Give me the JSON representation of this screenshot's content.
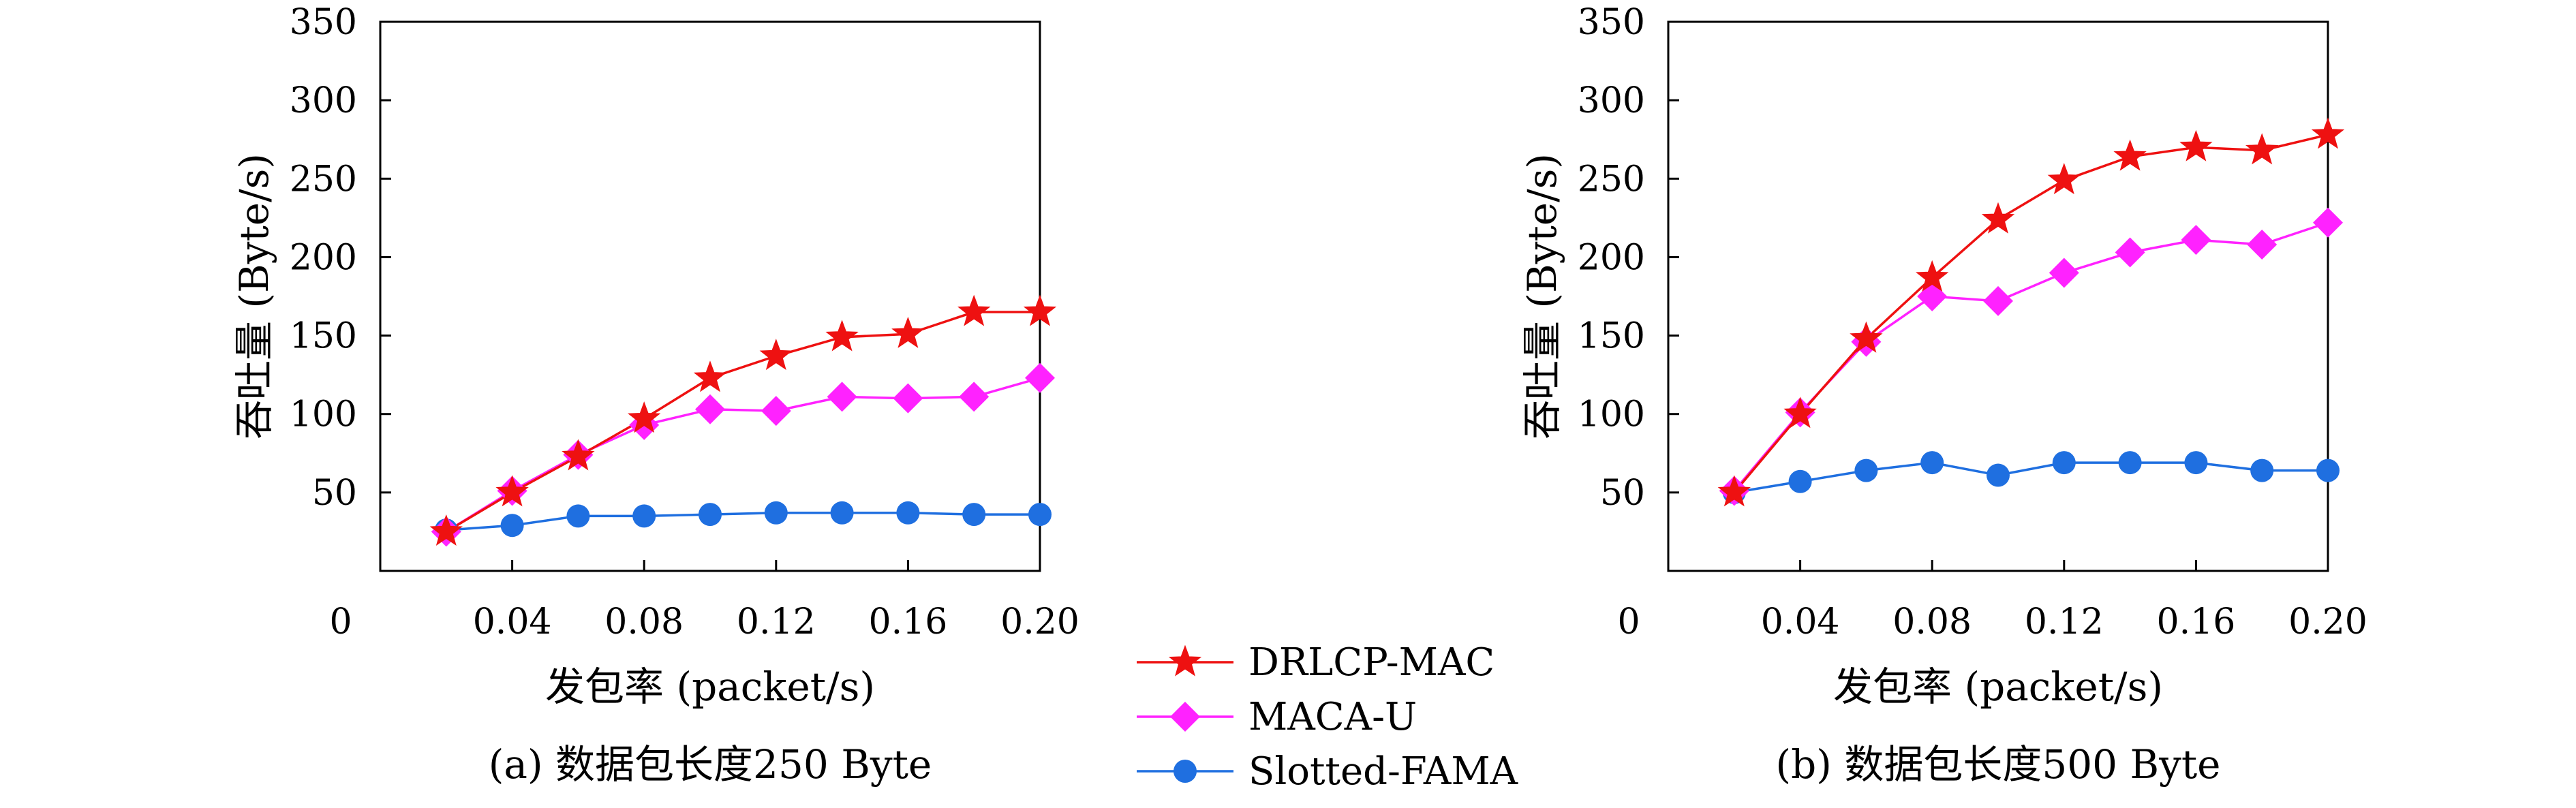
{
  "legend": [
    {
      "name": "DRLCP-MAC",
      "color": "#ee1111",
      "marker": "star"
    },
    {
      "name": "MACA-U",
      "color": "#ff22ff",
      "marker": "diamond"
    },
    {
      "name": "Slotted-FAMA",
      "color": "#1f6fe0",
      "marker": "circle"
    }
  ],
  "chart_data": [
    {
      "type": "line",
      "caption": "(a) 数据包长度250 Byte",
      "xlabel": "发包率 (packet/s)",
      "ylabel": "吞吐量 (Byte/s)",
      "xlim": [
        0,
        0.2
      ],
      "ylim": [
        0,
        350
      ],
      "x_ticks": [
        0.04,
        0.08,
        0.12,
        0.16,
        0.2
      ],
      "x_tick_labels": [
        "0.04",
        "0.08",
        "0.12",
        "0.16",
        "0.20"
      ],
      "y_ticks": [
        50,
        100,
        150,
        200,
        250,
        300,
        350
      ],
      "y_tick_labels": [
        "50",
        "100",
        "150",
        "200",
        "250",
        "300",
        "350"
      ],
      "origin_label": "0",
      "grid": false,
      "x": [
        0.02,
        0.04,
        0.06,
        0.08,
        0.1,
        0.12,
        0.14,
        0.16,
        0.18,
        0.2
      ],
      "series": [
        {
          "name": "DRLCP-MAC",
          "values": [
            25,
            50,
            73,
            97,
            123,
            137,
            149,
            151,
            165,
            165
          ]
        },
        {
          "name": "MACA-U",
          "values": [
            25,
            51,
            74,
            93,
            103,
            102,
            111,
            110,
            111,
            123
          ]
        },
        {
          "name": "Slotted-FAMA",
          "values": [
            26,
            29,
            35,
            35,
            36,
            37,
            37,
            37,
            36,
            36
          ]
        }
      ]
    },
    {
      "type": "line",
      "caption": "(b) 数据包长度500 Byte",
      "xlabel": "发包率 (packet/s)",
      "ylabel": "吞吐量 (Byte/s)",
      "xlim": [
        0,
        0.2
      ],
      "ylim": [
        0,
        350
      ],
      "x_ticks": [
        0.04,
        0.08,
        0.12,
        0.16,
        0.2
      ],
      "x_tick_labels": [
        "0.04",
        "0.08",
        "0.12",
        "0.16",
        "0.20"
      ],
      "y_ticks": [
        50,
        100,
        150,
        200,
        250,
        300,
        350
      ],
      "y_tick_labels": [
        "50",
        "100",
        "150",
        "200",
        "250",
        "300",
        "350"
      ],
      "origin_label": "0",
      "grid": false,
      "x": [
        0.02,
        0.04,
        0.06,
        0.08,
        0.1,
        0.12,
        0.14,
        0.16,
        0.18,
        0.2
      ],
      "series": [
        {
          "name": "DRLCP-MAC",
          "values": [
            50,
            100,
            148,
            187,
            224,
            249,
            264,
            270,
            268,
            278
          ]
        },
        {
          "name": "MACA-U",
          "values": [
            51,
            101,
            146,
            175,
            172,
            190,
            203,
            211,
            208,
            222
          ]
        },
        {
          "name": "Slotted-FAMA",
          "values": [
            50,
            57,
            64,
            69,
            61,
            69,
            69,
            69,
            64,
            64
          ]
        }
      ]
    }
  ]
}
